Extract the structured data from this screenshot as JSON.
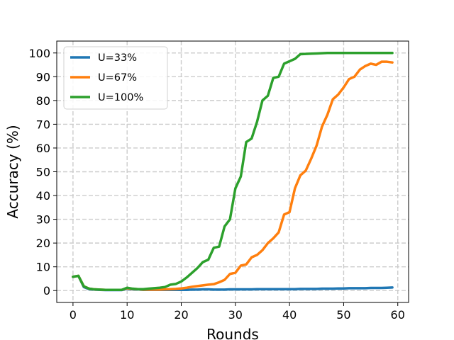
{
  "chart_data": {
    "type": "line",
    "xlabel": "Rounds",
    "ylabel": "Accuracy (%)",
    "xlim": [
      -3,
      62
    ],
    "ylim": [
      -5,
      105
    ],
    "xticks": [
      0,
      10,
      20,
      30,
      40,
      50,
      60
    ],
    "yticks": [
      0,
      10,
      20,
      30,
      40,
      50,
      60,
      70,
      80,
      90,
      100
    ],
    "grid": true,
    "legend_position": "top-left",
    "x": [
      0,
      1,
      2,
      3,
      4,
      5,
      6,
      7,
      8,
      9,
      10,
      11,
      12,
      13,
      14,
      15,
      16,
      17,
      18,
      19,
      20,
      21,
      22,
      23,
      24,
      25,
      26,
      27,
      28,
      29,
      30,
      31,
      32,
      33,
      34,
      35,
      36,
      37,
      38,
      39,
      40,
      41,
      42,
      43,
      44,
      45,
      46,
      47,
      48,
      49,
      50,
      51,
      52,
      53,
      54,
      55,
      56,
      57,
      58,
      59
    ],
    "series": [
      {
        "name": "U=33%",
        "color": "#1f77b4",
        "values": [
          5.8,
          6.2,
          1.5,
          0.6,
          0.4,
          0.3,
          0.2,
          0.2,
          0.2,
          0.2,
          0.8,
          0.5,
          0.5,
          0.3,
          0.3,
          0.3,
          0.3,
          0.3,
          0.3,
          0.3,
          0.3,
          0.3,
          0.4,
          0.4,
          0.5,
          0.5,
          0.4,
          0.4,
          0.4,
          0.5,
          0.5,
          0.5,
          0.5,
          0.5,
          0.6,
          0.6,
          0.6,
          0.6,
          0.6,
          0.6,
          0.6,
          0.6,
          0.7,
          0.7,
          0.7,
          0.7,
          0.8,
          0.8,
          0.8,
          0.9,
          0.9,
          1.0,
          1.0,
          1.0,
          1.0,
          1.1,
          1.1,
          1.1,
          1.2,
          1.3
        ]
      },
      {
        "name": "U=67%",
        "color": "#ff7f0e",
        "values": [
          5.8,
          6.2,
          1.8,
          0.8,
          0.5,
          0.4,
          0.3,
          0.3,
          0.3,
          0.3,
          1.0,
          0.7,
          0.6,
          0.4,
          0.4,
          0.4,
          0.4,
          0.5,
          0.6,
          0.7,
          0.9,
          1.2,
          1.6,
          1.9,
          2.2,
          2.5,
          2.7,
          3.5,
          4.5,
          7.0,
          7.5,
          10.5,
          11.0,
          14.0,
          15.0,
          17.0,
          20.0,
          22.0,
          24.5,
          32.0,
          33.0,
          43.0,
          48.5,
          50.5,
          55.5,
          61.0,
          69.0,
          74.0,
          80.5,
          82.5,
          85.5,
          89.0,
          90.0,
          93.0,
          94.5,
          95.5,
          95.0,
          96.3,
          96.3,
          96.0
        ]
      },
      {
        "name": "U=100%",
        "color": "#2ca02c",
        "values": [
          5.8,
          6.2,
          1.8,
          0.8,
          0.5,
          0.4,
          0.3,
          0.3,
          0.3,
          0.3,
          1.2,
          0.8,
          0.6,
          0.6,
          0.8,
          1.0,
          1.2,
          1.5,
          2.5,
          2.8,
          3.8,
          5.5,
          7.5,
          9.5,
          12.0,
          13.0,
          18.0,
          18.5,
          27.0,
          30.0,
          43.0,
          48.0,
          62.5,
          64.0,
          71.0,
          80.0,
          82.0,
          89.5,
          90.0,
          95.5,
          96.5,
          97.5,
          99.5,
          99.6,
          99.7,
          99.8,
          99.9,
          100.0,
          100.0,
          100.0,
          100.0,
          100.0,
          100.0,
          100.0,
          100.0,
          100.0,
          100.0,
          100.0,
          100.0,
          100.0
        ]
      }
    ]
  }
}
